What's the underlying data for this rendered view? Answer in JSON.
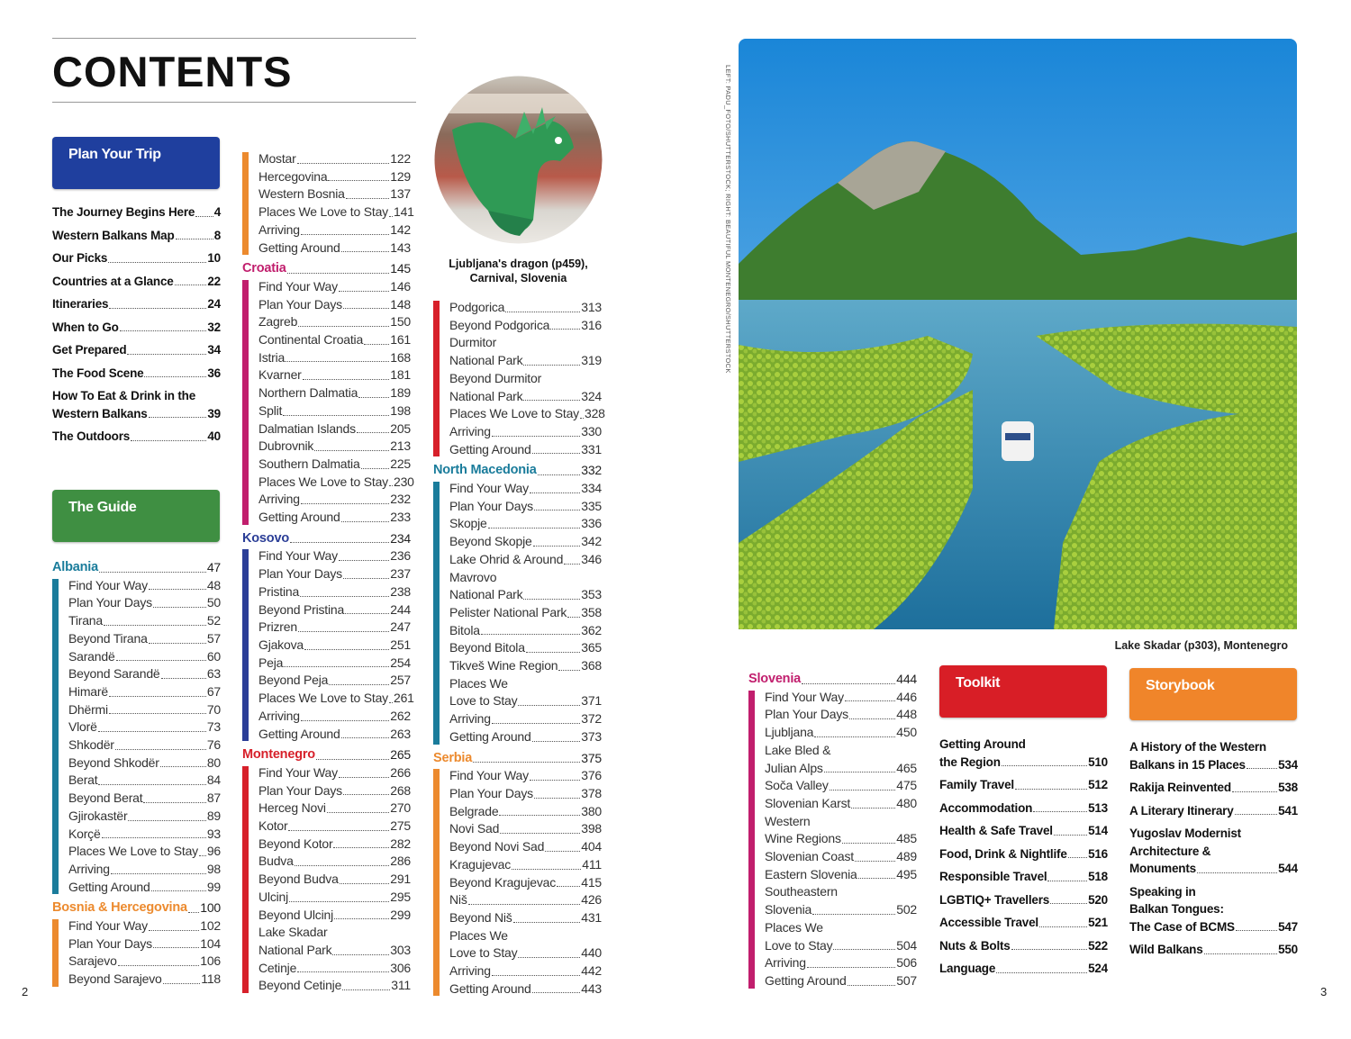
{
  "heading": "CONTENTS",
  "credit": "LEFT: PADU_FOTO/SHUTTERSTOCK; RIGHT: BEAUTIFUL MONTENEGRO/SHUTTERSTOCK",
  "page_numbers": {
    "left": "2",
    "right": "3"
  },
  "dragon_caption": "Ljubljana's dragon (p459),\nCarnival, Slovenia",
  "lake_caption": "Lake Skadar (p303), Montenegro",
  "colors": {
    "plan": "#1f3f9e",
    "guide": "#3f8f42",
    "toolkit": "#d81e26",
    "storybook": "#f0852a",
    "teal": "#1a7c9b",
    "orange": "#ec8a2e",
    "magenta": "#c11e6d",
    "blue": "#2b3e97",
    "red": "#d7202a"
  },
  "plan_your_trip": {
    "title": "Plan Your Trip",
    "items": [
      {
        "label": "The Journey Begins Here",
        "page": "4"
      },
      {
        "label": "Western Balkans Map",
        "page": "8"
      },
      {
        "label": "Our Picks",
        "page": "10"
      },
      {
        "label": "Countries at a Glance",
        "page": "22"
      },
      {
        "label": "Itineraries",
        "page": "24"
      },
      {
        "label": "When to Go",
        "page": "32"
      },
      {
        "label": "Get Prepared",
        "page": "34"
      },
      {
        "label": "The Food Scene",
        "page": "36"
      },
      {
        "label": "How To Eat & Drink in the\nWestern Balkans",
        "page": "39"
      },
      {
        "label": "The Outdoors",
        "page": "40"
      }
    ]
  },
  "the_guide": {
    "title": "The Guide"
  },
  "col1": [
    {
      "header": "Albania",
      "page": "47",
      "color": "teal",
      "items": [
        {
          "label": "Find Your Way",
          "page": "48"
        },
        {
          "label": "Plan Your Days",
          "page": "50"
        },
        {
          "label": "Tirana",
          "page": "52"
        },
        {
          "label": "Beyond Tirana",
          "page": "57"
        },
        {
          "label": "Sarandë",
          "page": "60"
        },
        {
          "label": "Beyond Sarandë",
          "page": "63"
        },
        {
          "label": "Himarë",
          "page": "67"
        },
        {
          "label": "Dhërmi",
          "page": "70"
        },
        {
          "label": "Vlorë",
          "page": "73"
        },
        {
          "label": "Shkodër",
          "page": "76"
        },
        {
          "label": "Beyond Shkodër",
          "page": "80"
        },
        {
          "label": "Berat",
          "page": "84"
        },
        {
          "label": "Beyond Berat",
          "page": "87"
        },
        {
          "label": "Gjirokastër",
          "page": "89"
        },
        {
          "label": "Korçë",
          "page": "93"
        },
        {
          "label": "Places We Love to Stay",
          "page": "96"
        },
        {
          "label": "Arriving",
          "page": "98"
        },
        {
          "label": "Getting Around",
          "page": "99"
        }
      ]
    },
    {
      "header": "Bosnia & Hercegovina",
      "page": "100",
      "color": "orange",
      "items": [
        {
          "label": "Find Your Way",
          "page": "102"
        },
        {
          "label": "Plan Your Days",
          "page": "104"
        },
        {
          "label": "Sarajevo",
          "page": "106"
        },
        {
          "label": "Beyond Sarajevo",
          "page": "118"
        }
      ]
    }
  ],
  "col2": [
    {
      "color": "orange",
      "items": [
        {
          "label": "Mostar",
          "page": "122"
        },
        {
          "label": "Hercegovina",
          "page": "129"
        },
        {
          "label": "Western Bosnia",
          "page": "137"
        },
        {
          "label": "Places We Love to Stay",
          "page": "141"
        },
        {
          "label": "Arriving",
          "page": "142"
        },
        {
          "label": "Getting Around",
          "page": "143"
        }
      ]
    },
    {
      "header": "Croatia",
      "page": "145",
      "color": "magenta",
      "items": [
        {
          "label": "Find Your Way",
          "page": "146"
        },
        {
          "label": "Plan Your Days",
          "page": "148"
        },
        {
          "label": "Zagreb",
          "page": "150"
        },
        {
          "label": "Continental Croatia",
          "page": "161"
        },
        {
          "label": "Istria",
          "page": "168"
        },
        {
          "label": "Kvarner",
          "page": "181"
        },
        {
          "label": "Northern Dalmatia",
          "page": "189"
        },
        {
          "label": "Split",
          "page": "198"
        },
        {
          "label": "Dalmatian Islands",
          "page": "205"
        },
        {
          "label": "Dubrovnik",
          "page": "213"
        },
        {
          "label": "Southern Dalmatia",
          "page": "225"
        },
        {
          "label": "Places We Love to Stay",
          "page": "230"
        },
        {
          "label": "Arriving",
          "page": "232"
        },
        {
          "label": "Getting Around",
          "page": "233"
        }
      ]
    },
    {
      "header": "Kosovo",
      "page": "234",
      "color": "blue",
      "items": [
        {
          "label": "Find Your Way",
          "page": "236"
        },
        {
          "label": "Plan Your Days",
          "page": "237"
        },
        {
          "label": "Pristina",
          "page": "238"
        },
        {
          "label": "Beyond Pristina",
          "page": "244"
        },
        {
          "label": "Prizren",
          "page": "247"
        },
        {
          "label": "Gjakova",
          "page": "251"
        },
        {
          "label": "Peja",
          "page": "254"
        },
        {
          "label": "Beyond Peja",
          "page": "257"
        },
        {
          "label": "Places We Love to Stay",
          "page": "261"
        },
        {
          "label": "Arriving",
          "page": "262"
        },
        {
          "label": "Getting Around",
          "page": "263"
        }
      ]
    },
    {
      "header": "Montenegro",
      "page": "265",
      "color": "red",
      "items": [
        {
          "label": "Find Your Way",
          "page": "266"
        },
        {
          "label": "Plan Your Days",
          "page": "268"
        },
        {
          "label": "Herceg Novi",
          "page": "270"
        },
        {
          "label": "Kotor",
          "page": "275"
        },
        {
          "label": "Beyond Kotor",
          "page": "282"
        },
        {
          "label": "Budva",
          "page": "286"
        },
        {
          "label": "Beyond Budva",
          "page": "291"
        },
        {
          "label": "Ulcinj",
          "page": "295"
        },
        {
          "label": "Beyond Ulcinj",
          "page": "299"
        },
        {
          "label": "Lake Skadar\nNational Park",
          "page": "303"
        },
        {
          "label": "Cetinje",
          "page": "306"
        },
        {
          "label": "Beyond Cetinje",
          "page": "311"
        }
      ]
    }
  ],
  "col3": [
    {
      "color": "red",
      "items": [
        {
          "label": "Podgorica",
          "page": "313"
        },
        {
          "label": "Beyond Podgorica",
          "page": "316"
        },
        {
          "label": "Durmitor\nNational Park",
          "page": "319"
        },
        {
          "label": "Beyond Durmitor\nNational Park",
          "page": "324"
        },
        {
          "label": "Places We Love to Stay",
          "page": "328"
        },
        {
          "label": "Arriving",
          "page": "330"
        },
        {
          "label": "Getting Around",
          "page": "331"
        }
      ]
    },
    {
      "header": "North Macedonia",
      "page": "332",
      "color": "teal",
      "items": [
        {
          "label": "Find Your Way",
          "page": "334"
        },
        {
          "label": "Plan Your Days",
          "page": "335"
        },
        {
          "label": "Skopje",
          "page": "336"
        },
        {
          "label": "Beyond Skopje",
          "page": "342"
        },
        {
          "label": "Lake Ohrid & Around",
          "page": "346"
        },
        {
          "label": "Mavrovo\nNational Park",
          "page": "353"
        },
        {
          "label": "Pelister National Park",
          "page": "358"
        },
        {
          "label": "Bitola",
          "page": "362"
        },
        {
          "label": "Beyond Bitola",
          "page": "365"
        },
        {
          "label": "Tikveš Wine Region",
          "page": "368"
        },
        {
          "label": "Places We\nLove to Stay",
          "page": "371"
        },
        {
          "label": "Arriving",
          "page": "372"
        },
        {
          "label": "Getting Around",
          "page": "373"
        }
      ]
    },
    {
      "header": "Serbia",
      "page": "375",
      "color": "orange",
      "items": [
        {
          "label": "Find Your Way",
          "page": "376"
        },
        {
          "label": "Plan Your Days",
          "page": "378"
        },
        {
          "label": "Belgrade",
          "page": "380"
        },
        {
          "label": "Novi Sad",
          "page": "398"
        },
        {
          "label": "Beyond Novi Sad",
          "page": "404"
        },
        {
          "label": "Kragujevac",
          "page": "411"
        },
        {
          "label": "Beyond Kragujevac",
          "page": "415"
        },
        {
          "label": "Niš",
          "page": "426"
        },
        {
          "label": "Beyond Niš",
          "page": "431"
        },
        {
          "label": "Places We\nLove to Stay",
          "page": "440"
        },
        {
          "label": "Arriving",
          "page": "442"
        },
        {
          "label": "Getting Around",
          "page": "443"
        }
      ]
    }
  ],
  "col4": [
    {
      "header": "Slovenia",
      "page": "444",
      "color": "magenta",
      "items": [
        {
          "label": "Find Your Way",
          "page": "446"
        },
        {
          "label": "Plan Your Days",
          "page": "448"
        },
        {
          "label": "Ljubljana",
          "page": "450"
        },
        {
          "label": "Lake Bled &\nJulian Alps",
          "page": "465"
        },
        {
          "label": "Soča Valley",
          "page": "475"
        },
        {
          "label": "Slovenian Karst",
          "page": "480"
        },
        {
          "label": "Western\nWine Regions",
          "page": "485"
        },
        {
          "label": "Slovenian Coast",
          "page": "489"
        },
        {
          "label": "Eastern Slovenia",
          "page": "495"
        },
        {
          "label": "Southeastern\nSlovenia",
          "page": "502"
        },
        {
          "label": "Places We\nLove to Stay",
          "page": "504"
        },
        {
          "label": "Arriving",
          "page": "506"
        },
        {
          "label": "Getting Around",
          "page": "507"
        }
      ]
    }
  ],
  "toolkit": {
    "title": "Toolkit",
    "items": [
      {
        "label": "Getting Around\nthe Region",
        "page": "510"
      },
      {
        "label": "Family Travel",
        "page": "512"
      },
      {
        "label": "Accommodation",
        "page": "513"
      },
      {
        "label": "Health & Safe Travel",
        "page": "514"
      },
      {
        "label": "Food, Drink & Nightlife",
        "page": "516"
      },
      {
        "label": "Responsible Travel",
        "page": "518"
      },
      {
        "label": "LGBTIQ+ Travellers",
        "page": "520"
      },
      {
        "label": "Accessible Travel",
        "page": "521"
      },
      {
        "label": "Nuts & Bolts",
        "page": "522"
      },
      {
        "label": "Language",
        "page": "524"
      }
    ]
  },
  "storybook": {
    "title": "Storybook",
    "items": [
      {
        "label": "A History of the Western\nBalkans in 15 Places",
        "page": "534"
      },
      {
        "label": "Rakija Reinvented",
        "page": "538"
      },
      {
        "label": "A Literary Itinerary",
        "page": "541"
      },
      {
        "label": "Yugoslav Modernist\nArchitecture &\nMonuments",
        "page": "544"
      },
      {
        "label": "Speaking in\nBalkan Tongues:\nThe Case of BCMS",
        "page": "547"
      },
      {
        "label": "Wild Balkans",
        "page": "550"
      }
    ]
  }
}
